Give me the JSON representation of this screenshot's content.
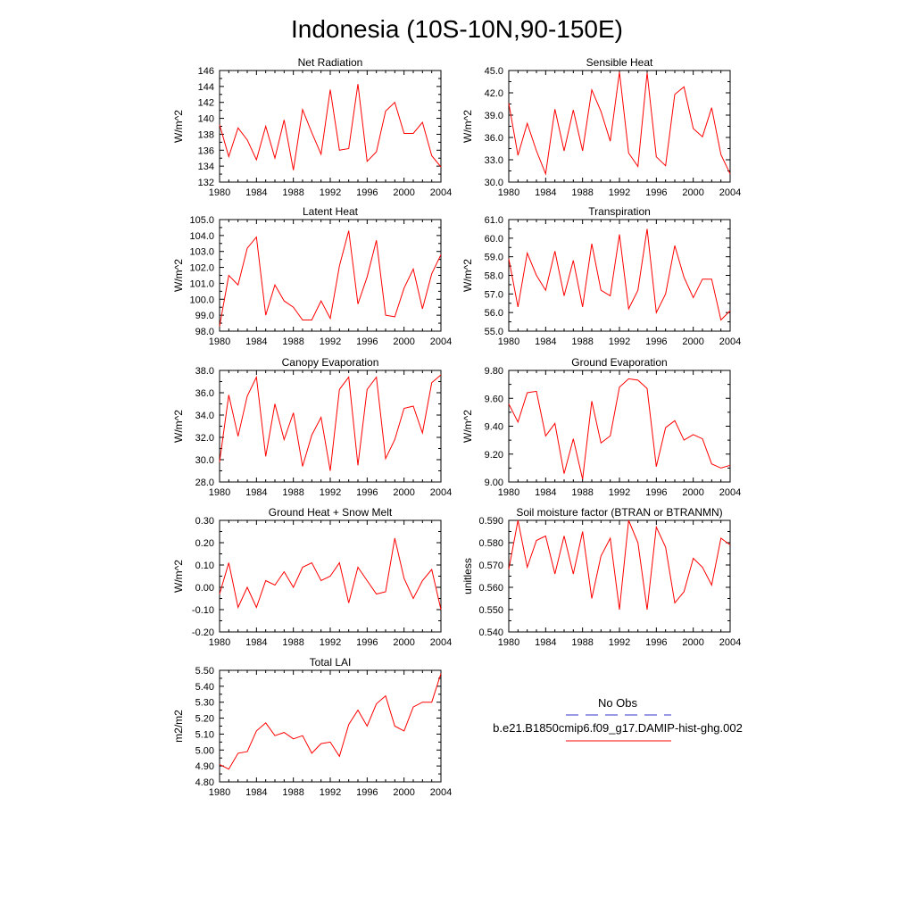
{
  "figure": {
    "title": "Indonesia (10S-10N,90-150E)"
  },
  "colors": {
    "series": "#ff0000",
    "obs": "#3333cc",
    "axis": "#000000"
  },
  "legend": {
    "placement": "bottom-right",
    "obs_label": "No Obs",
    "model_label": "b.e21.B1850cmip6.f09_g17.DAMIP-hist-ghg.002"
  },
  "chart_data": [
    {
      "type": "line",
      "title": "Net Radiation",
      "ylabel": "W/m^2",
      "xlim": [
        1980,
        2004
      ],
      "ylim": [
        132,
        146
      ],
      "xticks": [
        "1980",
        "1984",
        "1988",
        "1992",
        "1996",
        "2000",
        "2004"
      ],
      "yticks": [
        "132",
        "134",
        "136",
        "138",
        "140",
        "142",
        "144",
        "146"
      ],
      "x": [
        1980,
        1981,
        1982,
        1983,
        1984,
        1985,
        1986,
        1987,
        1988,
        1989,
        1990,
        1991,
        1992,
        1993,
        1994,
        1995,
        1996,
        1997,
        1998,
        1999,
        2000,
        2001,
        2002,
        2003,
        2004
      ],
      "series": [
        {
          "values": [
            139.2,
            135.2,
            138.8,
            137.3,
            134.8,
            139.0,
            135.0,
            139.8,
            133.5,
            141.1,
            138.2,
            135.5,
            143.6,
            136.0,
            136.2,
            144.3,
            134.6,
            135.8,
            140.9,
            142.0,
            138.1,
            138.1,
            139.5,
            135.3,
            133.9
          ]
        }
      ]
    },
    {
      "type": "line",
      "title": "Sensible Heat",
      "ylabel": "W/m^2",
      "xlim": [
        1980,
        2004
      ],
      "ylim": [
        30.0,
        45.0
      ],
      "xticks": [
        "1980",
        "1984",
        "1988",
        "1992",
        "1996",
        "2000",
        "2004"
      ],
      "yticks": [
        "30.0",
        "33.0",
        "36.0",
        "39.0",
        "42.0",
        "45.0"
      ],
      "x": [
        1980,
        1981,
        1982,
        1983,
        1984,
        1985,
        1986,
        1987,
        1988,
        1989,
        1990,
        1991,
        1992,
        1993,
        1994,
        1995,
        1996,
        1997,
        1998,
        1999,
        2000,
        2001,
        2002,
        2003,
        2004
      ],
      "series": [
        {
          "values": [
            40.6,
            33.6,
            37.9,
            34.2,
            31.1,
            39.8,
            34.2,
            39.7,
            34.2,
            42.4,
            39.5,
            35.5,
            44.8,
            33.9,
            32.1,
            44.7,
            33.4,
            32.2,
            41.8,
            42.8,
            37.2,
            36.1,
            40.0,
            33.7,
            31.1
          ]
        }
      ]
    },
    {
      "type": "line",
      "title": "Latent Heat",
      "ylabel": "W/m^2",
      "xlim": [
        1980,
        2004
      ],
      "ylim": [
        98.0,
        105.0
      ],
      "xticks": [
        "1980",
        "1984",
        "1988",
        "1992",
        "1996",
        "2000",
        "2004"
      ],
      "yticks": [
        "98.0",
        "99.0",
        "100.0",
        "101.0",
        "102.0",
        "103.0",
        "104.0",
        "105.0"
      ],
      "x": [
        1980,
        1981,
        1982,
        1983,
        1984,
        1985,
        1986,
        1987,
        1988,
        1989,
        1990,
        1991,
        1992,
        1993,
        1994,
        1995,
        1996,
        1997,
        1998,
        1999,
        2000,
        2001,
        2002,
        2003,
        2004
      ],
      "series": [
        {
          "values": [
            98.3,
            101.5,
            100.9,
            103.2,
            103.9,
            99.0,
            100.9,
            99.9,
            99.5,
            98.7,
            98.7,
            99.9,
            98.8,
            102.1,
            104.3,
            99.7,
            101.4,
            103.7,
            99.0,
            98.9,
            100.7,
            101.9,
            99.4,
            101.6,
            102.8
          ]
        }
      ]
    },
    {
      "type": "line",
      "title": "Transpiration",
      "ylabel": "W/m^2",
      "xlim": [
        1980,
        2004
      ],
      "ylim": [
        55.0,
        61.0
      ],
      "xticks": [
        "1980",
        "1984",
        "1988",
        "1992",
        "1996",
        "2000",
        "2004"
      ],
      "yticks": [
        "55.0",
        "56.0",
        "57.0",
        "58.0",
        "59.0",
        "60.0",
        "61.0"
      ],
      "x": [
        1980,
        1981,
        1982,
        1983,
        1984,
        1985,
        1986,
        1987,
        1988,
        1989,
        1990,
        1991,
        1992,
        1993,
        1994,
        1995,
        1996,
        1997,
        1998,
        1999,
        2000,
        2001,
        2002,
        2003,
        2004
      ],
      "series": [
        {
          "values": [
            58.9,
            56.3,
            59.2,
            58.0,
            57.2,
            59.3,
            56.9,
            58.8,
            56.3,
            59.7,
            57.2,
            56.9,
            60.2,
            56.2,
            57.2,
            60.5,
            56.0,
            57.0,
            59.6,
            57.9,
            56.8,
            57.8,
            57.8,
            55.6,
            56.1
          ]
        }
      ]
    },
    {
      "type": "line",
      "title": "Canopy Evaporation",
      "ylabel": "W/m^2",
      "xlim": [
        1980,
        2004
      ],
      "ylim": [
        28.0,
        38.0
      ],
      "xticks": [
        "1980",
        "1984",
        "1988",
        "1992",
        "1996",
        "2000",
        "2004"
      ],
      "yticks": [
        "28.0",
        "30.0",
        "32.0",
        "34.0",
        "36.0",
        "38.0"
      ],
      "x": [
        1980,
        1981,
        1982,
        1983,
        1984,
        1985,
        1986,
        1987,
        1988,
        1989,
        1990,
        1991,
        1992,
        1993,
        1994,
        1995,
        1996,
        1997,
        1998,
        1999,
        2000,
        2001,
        2002,
        2003,
        2004
      ],
      "series": [
        {
          "values": [
            29.8,
            35.8,
            32.1,
            35.7,
            37.4,
            30.3,
            35.0,
            31.8,
            34.2,
            29.4,
            32.2,
            33.8,
            29.0,
            36.3,
            37.4,
            29.5,
            36.3,
            37.4,
            30.1,
            31.8,
            34.6,
            34.8,
            32.4,
            36.9,
            37.6
          ]
        }
      ]
    },
    {
      "type": "line",
      "title": "Ground Evaporation",
      "ylabel": "W/m^2",
      "xlim": [
        1980,
        2004
      ],
      "ylim": [
        9.0,
        9.8
      ],
      "xticks": [
        "1980",
        "1984",
        "1988",
        "1992",
        "1996",
        "2000",
        "2004"
      ],
      "yticks": [
        "9.00",
        "9.20",
        "9.40",
        "9.60",
        "9.80"
      ],
      "x": [
        1980,
        1981,
        1982,
        1983,
        1984,
        1985,
        1986,
        1987,
        1988,
        1989,
        1990,
        1991,
        1992,
        1993,
        1994,
        1995,
        1996,
        1997,
        1998,
        1999,
        2000,
        2001,
        2002,
        2003,
        2004
      ],
      "series": [
        {
          "values": [
            9.56,
            9.43,
            9.64,
            9.65,
            9.33,
            9.42,
            9.06,
            9.31,
            9.02,
            9.58,
            9.28,
            9.33,
            9.68,
            9.74,
            9.73,
            9.67,
            9.11,
            9.39,
            9.44,
            9.3,
            9.34,
            9.31,
            9.13,
            9.1,
            9.12
          ]
        }
      ]
    },
    {
      "type": "line",
      "title": "Ground Heat + Snow Melt",
      "ylabel": "W/m^2",
      "xlim": [
        1980,
        2004
      ],
      "ylim": [
        -0.2,
        0.3
      ],
      "xticks": [
        "1980",
        "1984",
        "1988",
        "1992",
        "1996",
        "2000",
        "2004"
      ],
      "yticks": [
        "-0.20",
        "-0.10",
        "0.00",
        "0.10",
        "0.20",
        "0.30"
      ],
      "x": [
        1980,
        1981,
        1982,
        1983,
        1984,
        1985,
        1986,
        1987,
        1988,
        1989,
        1990,
        1991,
        1992,
        1993,
        1994,
        1995,
        1996,
        1997,
        1998,
        1999,
        2000,
        2001,
        2002,
        2003,
        2004
      ],
      "series": [
        {
          "values": [
            -0.03,
            0.11,
            -0.09,
            0.0,
            -0.09,
            0.03,
            0.01,
            0.07,
            0.0,
            0.09,
            0.11,
            0.03,
            0.05,
            0.11,
            -0.07,
            0.09,
            0.03,
            -0.03,
            -0.02,
            0.22,
            0.04,
            -0.05,
            0.03,
            0.08,
            -0.1
          ]
        }
      ]
    },
    {
      "type": "line",
      "title": "Soil moisture factor (BTRAN or BTRANMN)",
      "ylabel": "unitless",
      "xlim": [
        1980,
        2004
      ],
      "ylim": [
        0.54,
        0.59
      ],
      "xticks": [
        "1980",
        "1984",
        "1988",
        "1992",
        "1996",
        "2000",
        "2004"
      ],
      "yticks": [
        "0.540",
        "0.550",
        "0.560",
        "0.570",
        "0.580",
        "0.590"
      ],
      "x": [
        1980,
        1981,
        1982,
        1983,
        1984,
        1985,
        1986,
        1987,
        1988,
        1989,
        1990,
        1991,
        1992,
        1993,
        1994,
        1995,
        1996,
        1997,
        1998,
        1999,
        2000,
        2001,
        2002,
        2003,
        2004
      ],
      "series": [
        {
          "values": [
            0.568,
            0.59,
            0.569,
            0.581,
            0.583,
            0.566,
            0.583,
            0.566,
            0.585,
            0.555,
            0.574,
            0.582,
            0.55,
            0.59,
            0.58,
            0.55,
            0.587,
            0.578,
            0.553,
            0.558,
            0.573,
            0.569,
            0.561,
            0.582,
            0.579
          ]
        }
      ]
    },
    {
      "type": "line",
      "title": "Total LAI",
      "ylabel": "m2/m2",
      "xlim": [
        1980,
        2004
      ],
      "ylim": [
        4.8,
        5.5
      ],
      "xticks": [
        "1980",
        "1984",
        "1988",
        "1992",
        "1996",
        "2000",
        "2004"
      ],
      "yticks": [
        "4.80",
        "4.90",
        "5.00",
        "5.10",
        "5.20",
        "5.30",
        "5.40",
        "5.50"
      ],
      "x": [
        1980,
        1981,
        1982,
        1983,
        1984,
        1985,
        1986,
        1987,
        1988,
        1989,
        1990,
        1991,
        1992,
        1993,
        1994,
        1995,
        1996,
        1997,
        1998,
        1999,
        2000,
        2001,
        2002,
        2003,
        2004
      ],
      "series": [
        {
          "values": [
            4.91,
            4.88,
            4.98,
            4.99,
            5.12,
            5.17,
            5.09,
            5.11,
            5.07,
            5.09,
            4.98,
            5.04,
            5.05,
            4.96,
            5.16,
            5.25,
            5.15,
            5.29,
            5.34,
            5.15,
            5.12,
            5.27,
            5.3,
            5.3,
            5.48
          ]
        }
      ]
    }
  ]
}
